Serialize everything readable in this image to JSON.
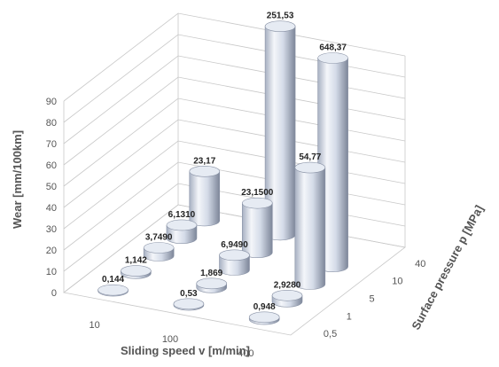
{
  "chart_data": {
    "type": "bar3d",
    "xlabel": "Sliding speed v [m/min]",
    "zlabel": "Surface pressure p [MPa]",
    "ylabel": "Wear [mm/100km]",
    "x_categories": [
      "10",
      "100",
      "400"
    ],
    "z_categories": [
      "0,5",
      "1",
      "5",
      "10",
      "40"
    ],
    "y_ticks": [
      "0",
      "10",
      "20",
      "30",
      "40",
      "50",
      "60",
      "70",
      "80",
      "90"
    ],
    "ylim": [
      0,
      90
    ],
    "bars": [
      {
        "x": "10",
        "z": "0,5",
        "value": 0.144,
        "label": "0,144"
      },
      {
        "x": "10",
        "z": "1",
        "value": 1.142,
        "label": "1,142"
      },
      {
        "x": "10",
        "z": "5",
        "value": 3.749,
        "label": "3,7490"
      },
      {
        "x": "10",
        "z": "10",
        "value": 6.131,
        "label": "6,1310"
      },
      {
        "x": "10",
        "z": "40",
        "value": 23.17,
        "label": "23,17"
      },
      {
        "x": "100",
        "z": "0,5",
        "value": 0.53,
        "label": "0,53"
      },
      {
        "x": "100",
        "z": "1",
        "value": 1.869,
        "label": "1,869"
      },
      {
        "x": "100",
        "z": "5",
        "value": 6.949,
        "label": "6,9490"
      },
      {
        "x": "100",
        "z": "10",
        "value": 23.15,
        "label": "23,1500"
      },
      {
        "x": "100",
        "z": "40",
        "value": 251.53,
        "label": "251,53"
      },
      {
        "x": "400",
        "z": "0,5",
        "value": 0.948,
        "label": "0,948"
      },
      {
        "x": "400",
        "z": "1",
        "value": 2.928,
        "label": "2,9280"
      },
      {
        "x": "400",
        "z": "5",
        "value": 54.77,
        "label": "54,77"
      },
      {
        "x": "400",
        "z": "10",
        "value": 648.37,
        "label": "648,37"
      },
      {
        "x": "400",
        "z": "40",
        "value": null,
        "label": ""
      }
    ],
    "grid": true,
    "legend": "none",
    "colors": {
      "bar_light": "#f4f6fa",
      "bar_mid": "#c9d2e2",
      "bar_dark": "#7d8699",
      "bar_top": "#e6ebf3",
      "bar_stroke": "#8a93a6"
    }
  }
}
